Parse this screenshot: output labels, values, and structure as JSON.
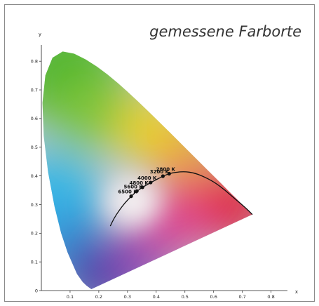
{
  "chart_data": {
    "type": "scatter",
    "title": "gemessene Farborte",
    "xlabel": "x",
    "ylabel": "y",
    "xlim": [
      0,
      0.8
    ],
    "ylim": [
      0,
      0.85
    ],
    "xticks": [
      "0.1",
      "0.2",
      "0.3",
      "0.4",
      "0.5",
      "0.6",
      "0.7",
      "0.8"
    ],
    "yticks": [
      "0",
      "0.1",
      "0.2",
      "0.3",
      "0.4",
      "0.5",
      "0.6",
      "0.7",
      "0.8"
    ],
    "grid": false,
    "points": [
      {
        "label": "2800 K",
        "x": 0.4452,
        "y": 0.4075
      },
      {
        "label": "3200 K",
        "x": 0.4234,
        "y": 0.399
      },
      {
        "label": "4000 K",
        "x": 0.3805,
        "y": 0.3768
      },
      {
        "label": "4800 K",
        "x": 0.352,
        "y": 0.36
      },
      {
        "label": "5600 K",
        "x": 0.3325,
        "y": 0.347
      },
      {
        "label": "6500 K",
        "x": 0.3127,
        "y": 0.329
      }
    ],
    "planckian_locus": [
      [
        0.24,
        0.225
      ],
      [
        0.253,
        0.252
      ],
      [
        0.27,
        0.278
      ],
      [
        0.29,
        0.305
      ],
      [
        0.313,
        0.329
      ],
      [
        0.333,
        0.347
      ],
      [
        0.352,
        0.36
      ],
      [
        0.381,
        0.377
      ],
      [
        0.424,
        0.399
      ],
      [
        0.445,
        0.408
      ],
      [
        0.47,
        0.413
      ],
      [
        0.5,
        0.415
      ],
      [
        0.53,
        0.411
      ],
      [
        0.56,
        0.4
      ],
      [
        0.6,
        0.38
      ],
      [
        0.64,
        0.35
      ],
      [
        0.68,
        0.315
      ],
      [
        0.71,
        0.29
      ],
      [
        0.735,
        0.265
      ]
    ],
    "spectral_locus": [
      [
        0.1741,
        0.005
      ],
      [
        0.1566,
        0.0177
      ],
      [
        0.144,
        0.0297
      ],
      [
        0.1241,
        0.0578
      ],
      [
        0.0913,
        0.1327
      ],
      [
        0.0687,
        0.2007
      ],
      [
        0.0454,
        0.295
      ],
      [
        0.0235,
        0.4127
      ],
      [
        0.0082,
        0.5384
      ],
      [
        0.0039,
        0.6548
      ],
      [
        0.0139,
        0.7502
      ],
      [
        0.0389,
        0.812
      ],
      [
        0.0743,
        0.8338
      ],
      [
        0.1142,
        0.8262
      ],
      [
        0.1547,
        0.8059
      ],
      [
        0.1929,
        0.7816
      ],
      [
        0.2296,
        0.7543
      ],
      [
        0.2658,
        0.7243
      ],
      [
        0.3016,
        0.6923
      ],
      [
        0.3373,
        0.6589
      ],
      [
        0.3731,
        0.6245
      ],
      [
        0.4087,
        0.5896
      ],
      [
        0.4441,
        0.5547
      ],
      [
        0.4788,
        0.5202
      ],
      [
        0.5125,
        0.4866
      ],
      [
        0.5448,
        0.4544
      ],
      [
        0.5752,
        0.4242
      ],
      [
        0.6029,
        0.3965
      ],
      [
        0.627,
        0.3725
      ],
      [
        0.6482,
        0.3514
      ],
      [
        0.6658,
        0.334
      ],
      [
        0.6801,
        0.3197
      ],
      [
        0.6915,
        0.3083
      ],
      [
        0.7006,
        0.2993
      ],
      [
        0.7079,
        0.292
      ],
      [
        0.714,
        0.2859
      ],
      [
        0.719,
        0.2809
      ],
      [
        0.723,
        0.277
      ],
      [
        0.726,
        0.274
      ],
      [
        0.7283,
        0.2717
      ],
      [
        0.73,
        0.27
      ],
      [
        0.7347,
        0.2653
      ]
    ],
    "region_colors": {
      "green": "#4fb52e",
      "yellow": "#f2d21a",
      "red": "#e2203a",
      "blue": "#3a3fa8",
      "cyan": "#33b6e6",
      "white": "#f7f3f3"
    }
  }
}
